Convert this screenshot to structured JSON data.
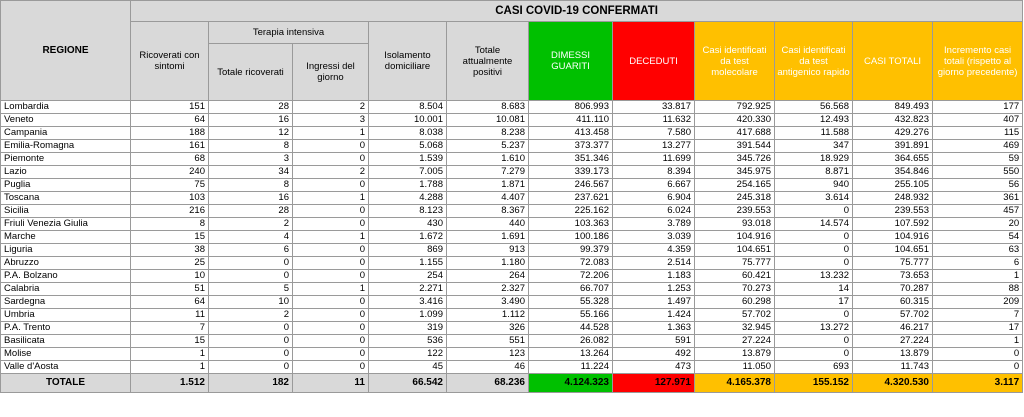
{
  "title": "CASI COVID-19 CONFERMATI",
  "headers": {
    "region": "REGIONE",
    "ricoverati": "Ricoverati con sintomi",
    "terapia_group": "Terapia intensiva",
    "totale_ricoverati": "Totale ricoverati",
    "ingressi": "Ingressi del giorno",
    "isolamento": "Isolamento domiciliare",
    "positivi": "Totale attualmente positivi",
    "dimessi": "DIMESSI GUARITI",
    "deceduti": "DECEDUTI",
    "molecolare": "Casi identificati da test molecolare",
    "antigenico": "Casi identificati da test antigenico rapido",
    "totali": "CASI TOTALI",
    "incremento": "Incremento casi totali (rispetto al giorno precedente)"
  },
  "colors": {
    "header_gray": "#d9d9d9",
    "dimessi": "#00c000",
    "deceduti": "#ff0000",
    "casi": "#ffc000"
  },
  "rows": [
    {
      "name": "Lombardia",
      "cols": [
        "151",
        "28",
        "2",
        "8.504",
        "8.683",
        "806.993",
        "33.817",
        "792.925",
        "56.568",
        "849.493",
        "177"
      ]
    },
    {
      "name": "Veneto",
      "cols": [
        "64",
        "16",
        "3",
        "10.001",
        "10.081",
        "411.110",
        "11.632",
        "420.330",
        "12.493",
        "432.823",
        "407"
      ]
    },
    {
      "name": "Campania",
      "cols": [
        "188",
        "12",
        "1",
        "8.038",
        "8.238",
        "413.458",
        "7.580",
        "417.688",
        "11.588",
        "429.276",
        "115"
      ]
    },
    {
      "name": "Emilia-Romagna",
      "cols": [
        "161",
        "8",
        "0",
        "5.068",
        "5.237",
        "373.377",
        "13.277",
        "391.544",
        "347",
        "391.891",
        "469"
      ]
    },
    {
      "name": "Piemonte",
      "cols": [
        "68",
        "3",
        "0",
        "1.539",
        "1.610",
        "351.346",
        "11.699",
        "345.726",
        "18.929",
        "364.655",
        "59"
      ]
    },
    {
      "name": "Lazio",
      "cols": [
        "240",
        "34",
        "2",
        "7.005",
        "7.279",
        "339.173",
        "8.394",
        "345.975",
        "8.871",
        "354.846",
        "550"
      ]
    },
    {
      "name": "Puglia",
      "cols": [
        "75",
        "8",
        "0",
        "1.788",
        "1.871",
        "246.567",
        "6.667",
        "254.165",
        "940",
        "255.105",
        "56"
      ]
    },
    {
      "name": "Toscana",
      "cols": [
        "103",
        "16",
        "1",
        "4.288",
        "4.407",
        "237.621",
        "6.904",
        "245.318",
        "3.614",
        "248.932",
        "361"
      ]
    },
    {
      "name": "Sicilia",
      "cols": [
        "216",
        "28",
        "0",
        "8.123",
        "8.367",
        "225.162",
        "6.024",
        "239.553",
        "0",
        "239.553",
        "457"
      ]
    },
    {
      "name": "Friuli Venezia Giulia",
      "cols": [
        "8",
        "2",
        "0",
        "430",
        "440",
        "103.363",
        "3.789",
        "93.018",
        "14.574",
        "107.592",
        "20"
      ]
    },
    {
      "name": "Marche",
      "cols": [
        "15",
        "4",
        "1",
        "1.672",
        "1.691",
        "100.186",
        "3.039",
        "104.916",
        "0",
        "104.916",
        "54"
      ]
    },
    {
      "name": "Liguria",
      "cols": [
        "38",
        "6",
        "0",
        "869",
        "913",
        "99.379",
        "4.359",
        "104.651",
        "0",
        "104.651",
        "63"
      ]
    },
    {
      "name": "Abruzzo",
      "cols": [
        "25",
        "0",
        "0",
        "1.155",
        "1.180",
        "72.083",
        "2.514",
        "75.777",
        "0",
        "75.777",
        "6"
      ]
    },
    {
      "name": "P.A. Bolzano",
      "cols": [
        "10",
        "0",
        "0",
        "254",
        "264",
        "72.206",
        "1.183",
        "60.421",
        "13.232",
        "73.653",
        "1"
      ]
    },
    {
      "name": "Calabria",
      "cols": [
        "51",
        "5",
        "1",
        "2.271",
        "2.327",
        "66.707",
        "1.253",
        "70.273",
        "14",
        "70.287",
        "88"
      ]
    },
    {
      "name": "Sardegna",
      "cols": [
        "64",
        "10",
        "0",
        "3.416",
        "3.490",
        "55.328",
        "1.497",
        "60.298",
        "17",
        "60.315",
        "209"
      ]
    },
    {
      "name": "Umbria",
      "cols": [
        "11",
        "2",
        "0",
        "1.099",
        "1.112",
        "55.166",
        "1.424",
        "57.702",
        "0",
        "57.702",
        "7"
      ]
    },
    {
      "name": "P.A. Trento",
      "cols": [
        "7",
        "0",
        "0",
        "319",
        "326",
        "44.528",
        "1.363",
        "32.945",
        "13.272",
        "46.217",
        "17"
      ]
    },
    {
      "name": "Basilicata",
      "cols": [
        "15",
        "0",
        "0",
        "536",
        "551",
        "26.082",
        "591",
        "27.224",
        "0",
        "27.224",
        "1"
      ]
    },
    {
      "name": "Molise",
      "cols": [
        "1",
        "0",
        "0",
        "122",
        "123",
        "13.264",
        "492",
        "13.879",
        "0",
        "13.879",
        "0"
      ]
    },
    {
      "name": "Valle d'Aosta",
      "cols": [
        "1",
        "0",
        "0",
        "45",
        "46",
        "11.224",
        "473",
        "11.050",
        "693",
        "11.743",
        "0"
      ]
    }
  ],
  "total": {
    "label": "TOTALE",
    "cols": [
      "1.512",
      "182",
      "11",
      "66.542",
      "68.236",
      "4.124.323",
      "127.971",
      "4.165.378",
      "155.152",
      "4.320.530",
      "3.117"
    ]
  }
}
